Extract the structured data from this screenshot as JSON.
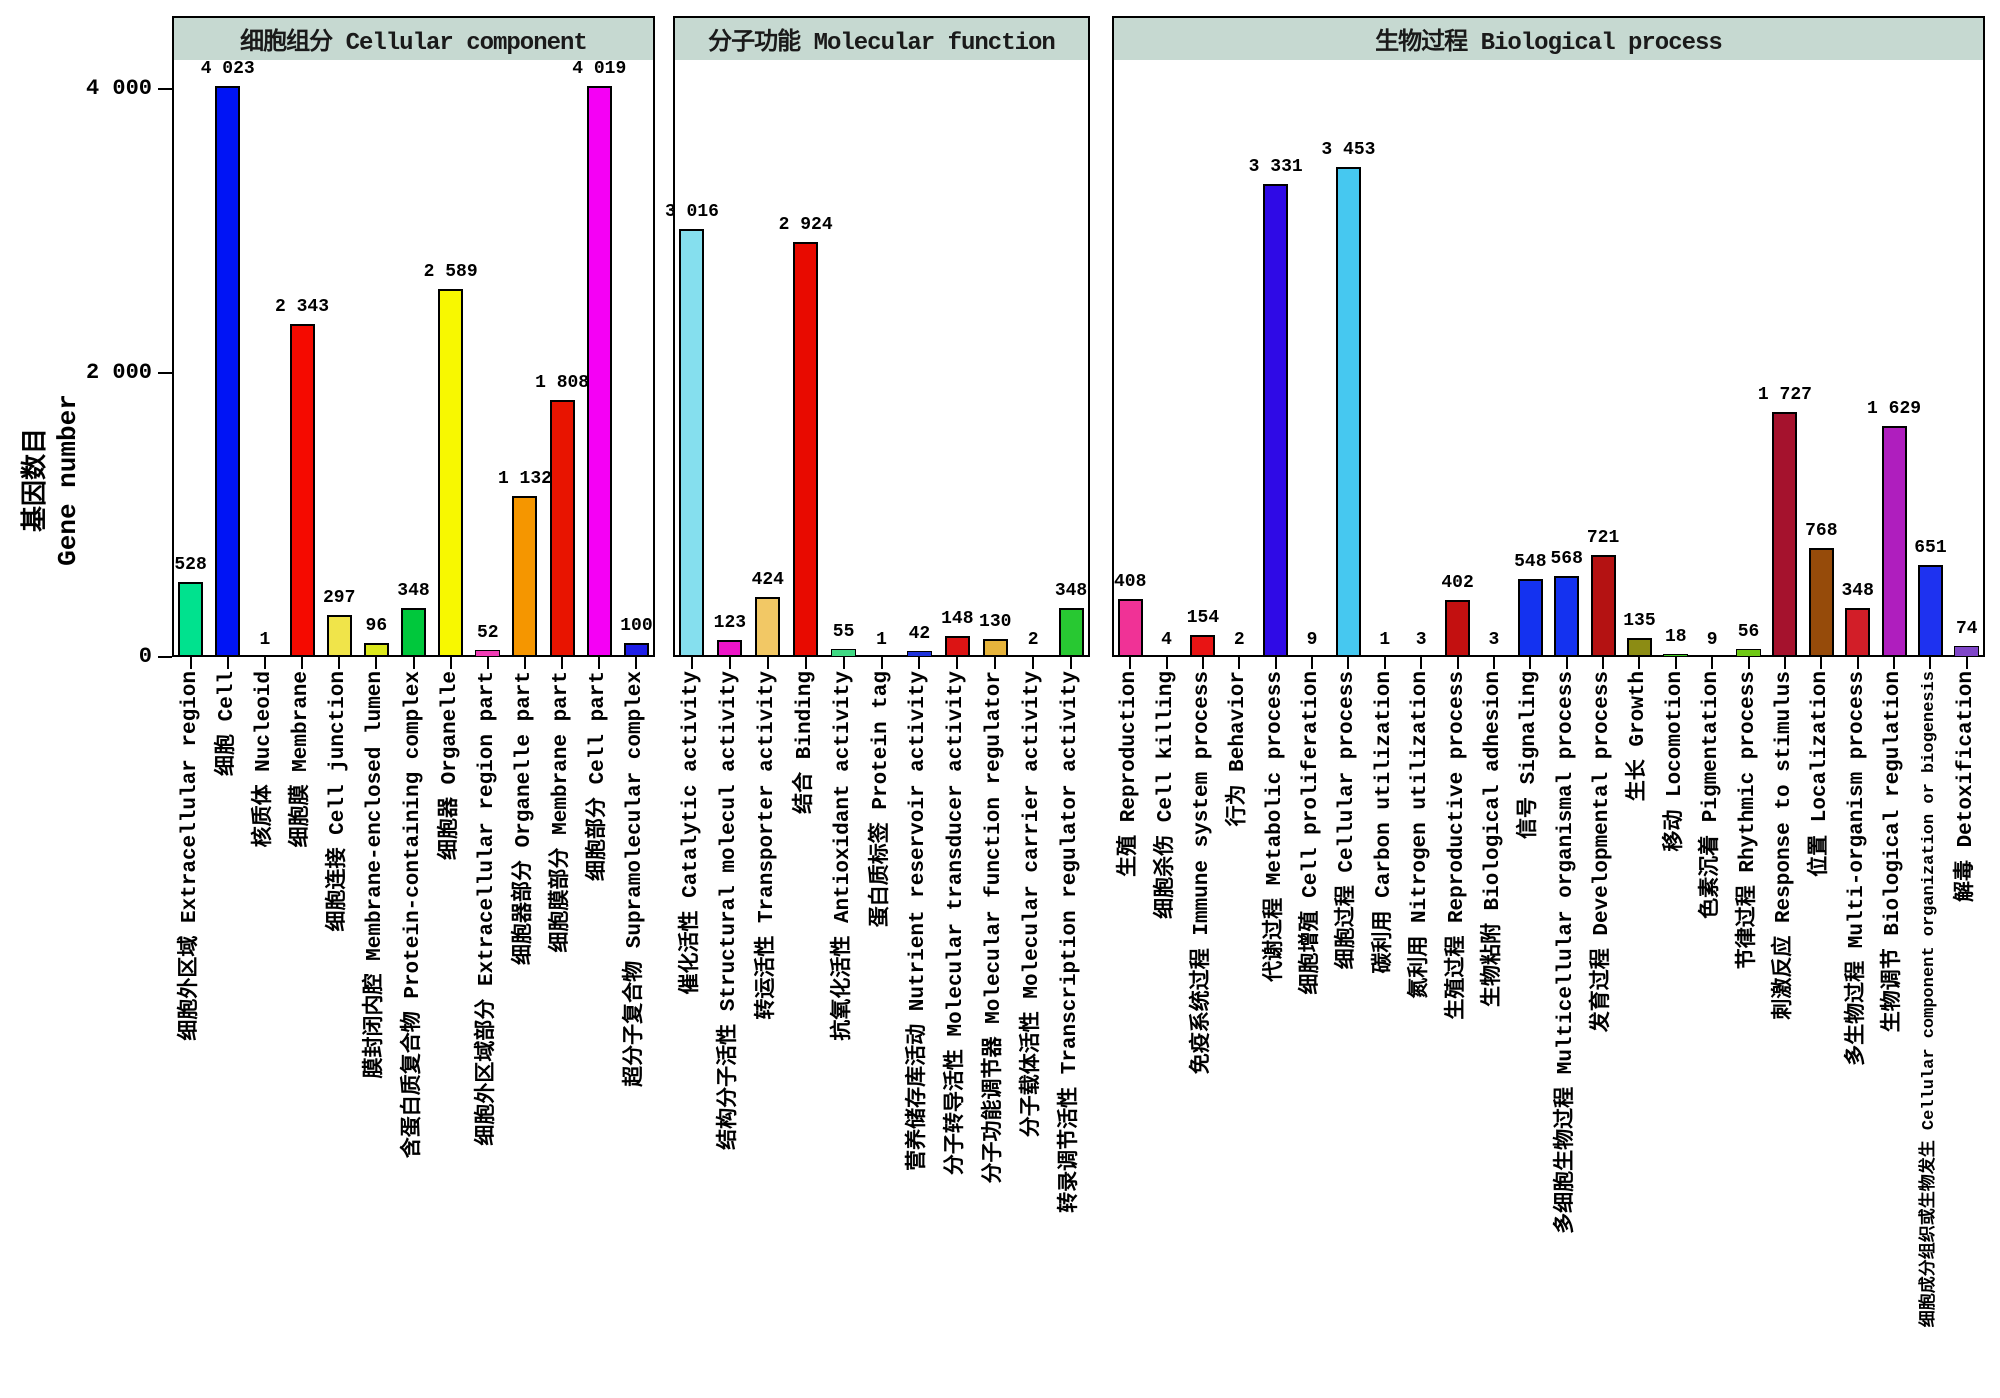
{
  "chart_data": {
    "type": "bar",
    "title": "",
    "ylabel": "基因数目 Gene number",
    "ylabel_cn": "基因数目",
    "ylabel_en": "Gene number",
    "ylim": [
      0,
      4300
    ],
    "grid": false,
    "legend": "none",
    "header_bg": "#C6D9D1",
    "yticks": [
      {
        "value": 0,
        "label": "0"
      },
      {
        "value": 2000,
        "label": "2 000"
      },
      {
        "value": 4000,
        "label": "4 000"
      }
    ],
    "panels": [
      {
        "title": "细胞组分 Cellular component",
        "bars": [
          {
            "label_cn": "细胞外区域",
            "label_en": "Extracellular region",
            "value": 528,
            "value_label": "528",
            "color": "#00E28E"
          },
          {
            "label_cn": "细胞",
            "label_en": "Cell",
            "value": 4023,
            "value_label": "4 023",
            "color": "#0014F5"
          },
          {
            "label_cn": "核质体",
            "label_en": "Nucleoid",
            "value": 1,
            "value_label": "1",
            "color": "#999999"
          },
          {
            "label_cn": "细胞膜",
            "label_en": "Membrane",
            "value": 2343,
            "value_label": "2 343",
            "color": "#F50A00"
          },
          {
            "label_cn": "细胞连接",
            "label_en": "Cell junction",
            "value": 297,
            "value_label": "297",
            "color": "#F0E44A"
          },
          {
            "label_cn": "膜封闭内腔",
            "label_en": "Membrane-enclosed lumen",
            "value": 96,
            "value_label": "96",
            "color": "#DCE81C"
          },
          {
            "label_cn": "含蛋白质复合物",
            "label_en": "Protein-containing complex",
            "value": 348,
            "value_label": "348",
            "color": "#00C83C"
          },
          {
            "label_cn": "细胞器",
            "label_en": "Organelle",
            "value": 2589,
            "value_label": "2 589",
            "color": "#F8F800"
          },
          {
            "label_cn": "细胞外区域部分",
            "label_en": "Extracellular region part",
            "value": 52,
            "value_label": "52",
            "color": "#F03CB4"
          },
          {
            "label_cn": "细胞器部分",
            "label_en": "Organelle part",
            "value": 1132,
            "value_label": "1 132",
            "color": "#F59600"
          },
          {
            "label_cn": "细胞膜部分",
            "label_en": "Membrane part",
            "value": 1808,
            "value_label": "1 808",
            "color": "#E81400"
          },
          {
            "label_cn": "细胞部分",
            "label_en": "Cell part",
            "value": 4019,
            "value_label": "4 019",
            "color": "#F500F5"
          },
          {
            "label_cn": "超分子复合物",
            "label_en": "Supramolecular complex",
            "value": 100,
            "value_label": "100",
            "color": "#1E1EE8"
          }
        ]
      },
      {
        "title": "分子功能 Molecular function",
        "bars": [
          {
            "label_cn": "催化活性",
            "label_en": "Catalytic activity",
            "value": 3016,
            "value_label": "3 016",
            "color": "#85DFEE"
          },
          {
            "label_cn": "结构分子活性",
            "label_en": "Structural molecul activity",
            "value": 123,
            "value_label": "123",
            "color": "#EE14C8"
          },
          {
            "label_cn": "转运活性",
            "label_en": "Transporter activity",
            "value": 424,
            "value_label": "424",
            "color": "#F2C865"
          },
          {
            "label_cn": "结合",
            "label_en": "Binding",
            "value": 2924,
            "value_label": "2 924",
            "color": "#E80A00"
          },
          {
            "label_cn": "抗氧化活性",
            "label_en": "Antioxidant activity",
            "value": 55,
            "value_label": "55",
            "color": "#3FD983"
          },
          {
            "label_cn": "蛋白质标签",
            "label_en": "Protein tag",
            "value": 1,
            "value_label": "1",
            "color": "#999999"
          },
          {
            "label_cn": "营养储存库活动",
            "label_en": "Nutrient reservoir activity",
            "value": 42,
            "value_label": "42",
            "color": "#1E32DC"
          },
          {
            "label_cn": "分子转导活性",
            "label_en": "Molecular transducer activity",
            "value": 148,
            "value_label": "148",
            "color": "#DC1414"
          },
          {
            "label_cn": "分子功能调节器",
            "label_en": "Molecular function regulator",
            "value": 130,
            "value_label": "130",
            "color": "#E6B43C"
          },
          {
            "label_cn": "分子载体活性",
            "label_en": "Molecular carrier activity",
            "value": 2,
            "value_label": "2",
            "color": "#999999"
          },
          {
            "label_cn": "转录调节活性",
            "label_en": "Transcription regulator activity",
            "value": 348,
            "value_label": "348",
            "color": "#28C832"
          }
        ]
      },
      {
        "title": "生物过程 Biological process",
        "bars": [
          {
            "label_cn": "生殖",
            "label_en": "Reproduction",
            "value": 408,
            "value_label": "408",
            "color": "#F03296"
          },
          {
            "label_cn": "细胞杀伤",
            "label_en": "Cell killing",
            "value": 4,
            "value_label": "4",
            "color": "#999999"
          },
          {
            "label_cn": "免疫系统过程",
            "label_en": "Immune system process",
            "value": 154,
            "value_label": "154",
            "color": "#E81414"
          },
          {
            "label_cn": "行为",
            "label_en": "Behavior",
            "value": 2,
            "value_label": "2",
            "color": "#999999"
          },
          {
            "label_cn": "代谢过程",
            "label_en": "Metabolic process",
            "value": 3331,
            "value_label": "3 331",
            "color": "#2F0AE6"
          },
          {
            "label_cn": "细胞增殖",
            "label_en": "Cell proliferation",
            "value": 9,
            "value_label": "9",
            "color": "#999999"
          },
          {
            "label_cn": "细胞过程",
            "label_en": "Cellular process",
            "value": 3453,
            "value_label": "3 453",
            "color": "#46C8F0"
          },
          {
            "label_cn": "碳利用",
            "label_en": "Carbon utilization",
            "value": 1,
            "value_label": "1",
            "color": "#999999"
          },
          {
            "label_cn": "氮利用",
            "label_en": "Nitrogen utilization",
            "value": 3,
            "value_label": "3",
            "color": "#999999"
          },
          {
            "label_cn": "生殖过程",
            "label_en": "Reproductive process",
            "value": 402,
            "value_label": "402",
            "color": "#C31010"
          },
          {
            "label_cn": "生物粘附",
            "label_en": "Biological adhesion",
            "value": 3,
            "value_label": "3",
            "color": "#999999"
          },
          {
            "label_cn": "信号",
            "label_en": "Signaling",
            "value": 548,
            "value_label": "548",
            "color": "#1432F0"
          },
          {
            "label_cn": "多细胞生物过程",
            "label_en": "Multicellular organismal process",
            "value": 568,
            "value_label": "568",
            "color": "#1432F0"
          },
          {
            "label_cn": "发育过程",
            "label_en": "Developmental process",
            "value": 721,
            "value_label": "721",
            "color": "#B41212"
          },
          {
            "label_cn": "生长",
            "label_en": "Growth",
            "value": 135,
            "value_label": "135",
            "color": "#8C8C14"
          },
          {
            "label_cn": "移动",
            "label_en": "Locomotion",
            "value": 18,
            "value_label": "18",
            "color": "#3CC81E"
          },
          {
            "label_cn": "色素沉着",
            "label_en": "Pigmentation",
            "value": 9,
            "value_label": "9",
            "color": "#999999"
          },
          {
            "label_cn": "节律过程",
            "label_en": "Rhythmic process",
            "value": 56,
            "value_label": "56",
            "color": "#6EC814"
          },
          {
            "label_cn": "刺激反应",
            "label_en": "Response to stimulus",
            "value": 1727,
            "value_label": "1 727",
            "color": "#A5122D"
          },
          {
            "label_cn": "位置",
            "label_en": "Localization",
            "value": 768,
            "value_label": "768",
            "color": "#964B0A"
          },
          {
            "label_cn": "多生物过程",
            "label_en": "Multi-organism process",
            "value": 348,
            "value_label": "348",
            "color": "#D21E28"
          },
          {
            "label_cn": "生物调节",
            "label_en": "Biological regulation",
            "value": 1629,
            "value_label": "1 629",
            "color": "#AF1EBE"
          },
          {
            "label_cn": "细胞成分组织或生物发生",
            "label_en": "Cellular component organization or biogenesis",
            "value": 651,
            "value_label": "651",
            "color": "#1E32F0",
            "small": true
          },
          {
            "label_cn": "解毒",
            "label_en": "Detoxification",
            "value": 74,
            "value_label": "74",
            "color": "#7F46C8"
          }
        ]
      }
    ]
  }
}
